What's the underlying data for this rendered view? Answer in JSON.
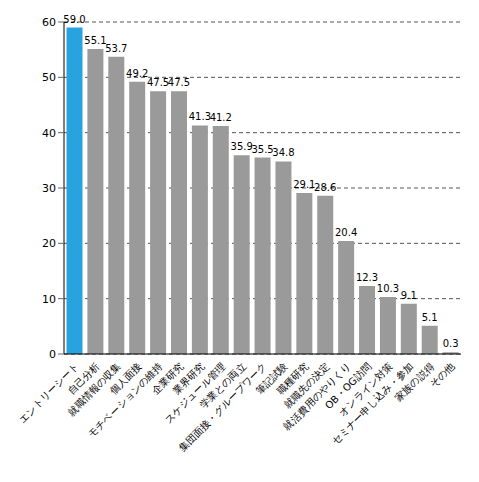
{
  "chart_data": {
    "type": "bar",
    "categories": [
      "エントリーシート",
      "自己分析",
      "就職情報の収集",
      "個人面接",
      "モチベーションの維持",
      "企業研究",
      "業界研究",
      "スケジュール管理",
      "学業との両立",
      "集団面接・グループワーク",
      "筆記試験",
      "職種研究",
      "就職先の決定",
      "就活費用のやりくり",
      "OB・OG訪問",
      "オンライン対策",
      "セミナー申し込み・参加",
      "家族の説得",
      "その他"
    ],
    "values": [
      59.0,
      55.1,
      53.7,
      49.2,
      47.5,
      47.5,
      41.3,
      41.2,
      35.9,
      35.5,
      34.8,
      29.1,
      28.6,
      20.4,
      12.3,
      10.3,
      9.1,
      5.1,
      0.3
    ],
    "value_labels": [
      "59.0",
      "55.1",
      "53.7",
      "49.2",
      "47.5",
      "47.5",
      "41.3",
      "41.2",
      "35.9",
      "35.5",
      "34.8",
      "29.1",
      "28.6",
      "20.4",
      "12.3",
      "10.3",
      "9.1",
      "5.1",
      "0.3"
    ],
    "colors": [
      "#29a3e0",
      "#9a9a9a",
      "#9a9a9a",
      "#9a9a9a",
      "#9a9a9a",
      "#9a9a9a",
      "#9a9a9a",
      "#9a9a9a",
      "#9a9a9a",
      "#9a9a9a",
      "#9a9a9a",
      "#9a9a9a",
      "#9a9a9a",
      "#9a9a9a",
      "#9a9a9a",
      "#9a9a9a",
      "#9a9a9a",
      "#9a9a9a",
      "#9a9a9a"
    ],
    "ylim": [
      0,
      60
    ],
    "yticks": [
      0,
      10,
      20,
      30,
      40,
      50,
      60
    ],
    "grid": true,
    "data_labels": true
  }
}
